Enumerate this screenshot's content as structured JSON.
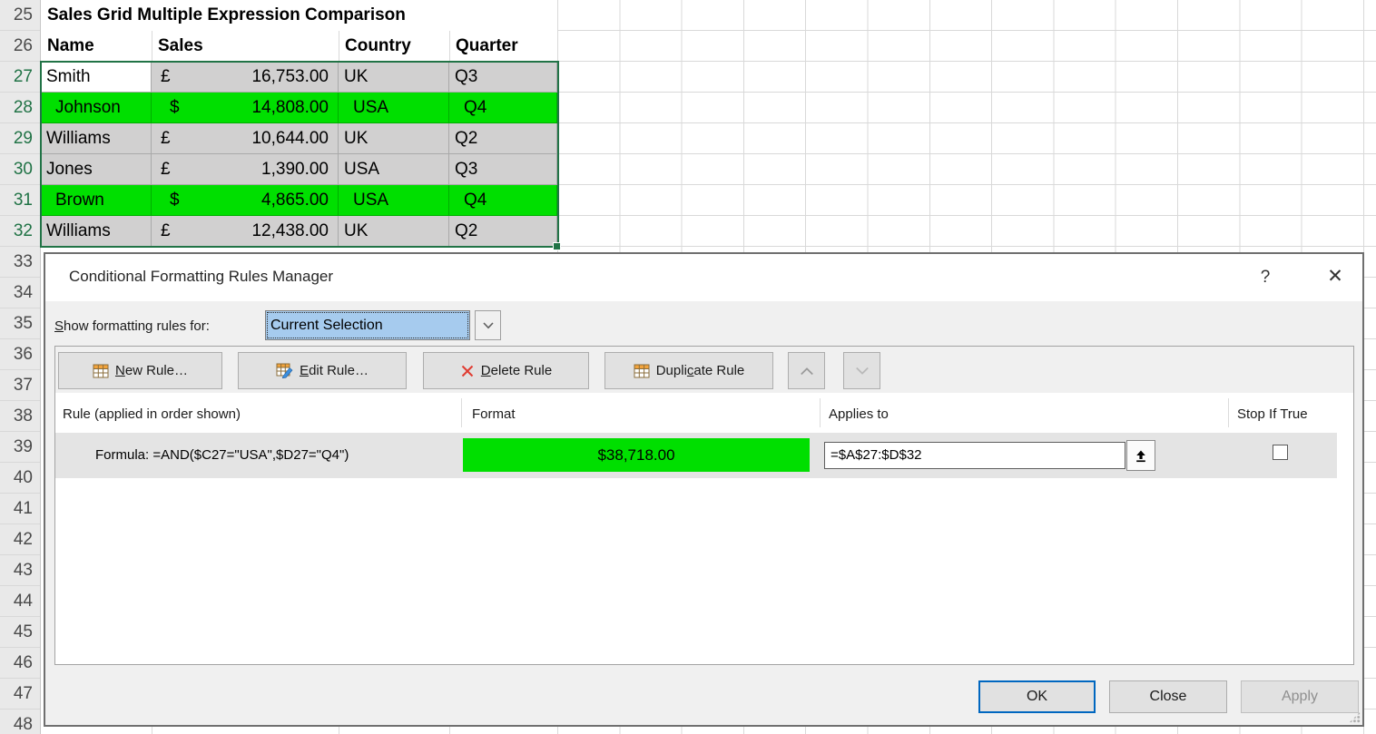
{
  "colors": {
    "highlight_green": "#00DF00",
    "selection_gray": "#D1D0D0",
    "header_green": "#217346",
    "gridline": "#D9D9D9",
    "combo_focus_blue": "#A6CBEE",
    "ok_button_border": "#0067C0"
  },
  "spreadsheet": {
    "title": "Sales Grid Multiple Expression Comparison",
    "column_headers": [
      "Name",
      "Sales",
      "Country",
      "Quarter"
    ],
    "row_numbers": [
      25,
      26,
      27,
      28,
      29,
      30,
      31,
      32,
      33,
      34,
      35,
      36,
      37,
      38,
      39,
      40,
      41,
      42,
      43,
      44,
      45,
      46,
      47,
      48
    ],
    "selected_rows": [
      27,
      28,
      29,
      30,
      31,
      32
    ],
    "rows": [
      {
        "row": 27,
        "name": "Smith",
        "currency": "£",
        "amount": "16,753.00",
        "country": "UK",
        "quarter": "Q3",
        "highlight": false
      },
      {
        "row": 28,
        "name": "Johnson",
        "currency": "$",
        "amount": "14,808.00",
        "country": "USA",
        "quarter": "Q4",
        "highlight": true
      },
      {
        "row": 29,
        "name": "Williams",
        "currency": "£",
        "amount": "10,644.00",
        "country": "UK",
        "quarter": "Q2",
        "highlight": false
      },
      {
        "row": 30,
        "name": "Jones",
        "currency": "£",
        "amount": "1,390.00",
        "country": "USA",
        "quarter": "Q3",
        "highlight": false
      },
      {
        "row": 31,
        "name": "Brown",
        "currency": "$",
        "amount": "4,865.00",
        "country": "USA",
        "quarter": "Q4",
        "highlight": true
      },
      {
        "row": 32,
        "name": "Williams",
        "currency": "£",
        "amount": "12,438.00",
        "country": "UK",
        "quarter": "Q2",
        "highlight": false
      }
    ]
  },
  "dialog": {
    "title": "Conditional Formatting Rules Manager",
    "help_label": "?",
    "close_label": "✕",
    "show_rules_label": {
      "pre": "",
      "accel": "S",
      "post": "how formatting rules for:"
    },
    "show_rules_value": "Current Selection",
    "toolbar": {
      "new_rule": {
        "pre": "",
        "accel": "N",
        "post": "ew Rule…"
      },
      "edit_rule": {
        "pre": "",
        "accel": "E",
        "post": "dit Rule…"
      },
      "delete_rule": {
        "pre": "",
        "accel": "D",
        "post": "elete Rule"
      },
      "duplicate_rule": {
        "pre": "Dupli",
        "accel": "c",
        "post": "ate Rule"
      }
    },
    "list": {
      "headers": {
        "rule": "Rule (applied in order shown)",
        "format": "Format",
        "applies_to": "Applies to",
        "stop_if_true": "Stop If True"
      },
      "rule": {
        "rule_text": "Formula: =AND($C27=\"USA\",$D27=\"Q4\")",
        "format_preview": "$38,718.00",
        "applies_to_value": "=$A$27:$D$32",
        "stop_if_true_checked": false
      }
    },
    "footer": {
      "ok": "OK",
      "close": "Close",
      "apply": "Apply"
    }
  }
}
